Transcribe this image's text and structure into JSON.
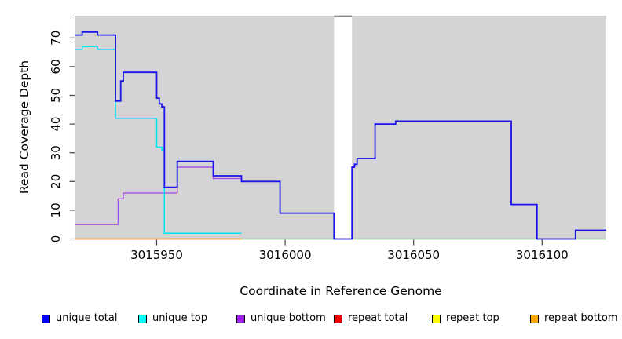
{
  "figure": {
    "background": "#ffffff",
    "plot_background": "#d4d4d4"
  },
  "axes": {
    "x_label": "Coordinate in Reference Genome",
    "y_label": "Read Coverage Depth"
  },
  "legend": {
    "items": [
      {
        "label": "unique total",
        "color": "#0000ff"
      },
      {
        "label": "unique top",
        "color": "#00ffff"
      },
      {
        "label": "unique bottom",
        "color": "#a020f0"
      },
      {
        "label": "repeat total",
        "color": "#ee0000"
      },
      {
        "label": "repeat top",
        "color": "#ffff00"
      },
      {
        "label": "repeat bottom",
        "color": "#ffa500"
      }
    ]
  },
  "chart_data": {
    "type": "line",
    "subtype": "step",
    "title": "",
    "xlabel": "Coordinate in Reference Genome",
    "ylabel": "Read Coverage Depth",
    "xlim": [
      3015918,
      3016125
    ],
    "ylim": [
      0,
      72
    ],
    "x_ticks": [
      3015950,
      3016000,
      3016050,
      3016100
    ],
    "y_ticks": [
      0,
      10,
      20,
      30,
      40,
      50,
      60,
      70
    ],
    "grid": false,
    "legend_position": "bottom",
    "plot_background": "#d4d4d4",
    "no_data_gap": {
      "x_start": 3016019,
      "x_end": 3016026
    },
    "series": [
      {
        "name": "unique total",
        "color": "#1b15ea",
        "legend_color": "#0000ff",
        "width": 1.8,
        "points": [
          [
            3015918,
            71
          ],
          [
            3015921,
            72
          ],
          [
            3015927,
            71
          ],
          [
            3015934,
            48
          ],
          [
            3015936,
            55
          ],
          [
            3015937,
            58
          ],
          [
            3015950,
            49
          ],
          [
            3015951,
            47
          ],
          [
            3015952,
            46
          ],
          [
            3015953,
            18
          ],
          [
            3015958,
            27
          ],
          [
            3015972,
            22
          ],
          [
            3015983,
            20
          ],
          [
            3015998,
            9
          ],
          [
            3016019,
            0
          ],
          [
            3016026,
            25
          ],
          [
            3016027,
            26
          ],
          [
            3016028,
            28
          ],
          [
            3016035,
            40
          ],
          [
            3016043,
            41
          ],
          [
            3016088,
            12
          ],
          [
            3016098,
            0
          ],
          [
            3016113,
            3
          ]
        ],
        "x_end": 3016125
      },
      {
        "name": "unique top",
        "color": "#00e2f2",
        "legend_color": "#00ffff",
        "width": 1.5,
        "points": [
          [
            3015918,
            66
          ],
          [
            3015921,
            67
          ],
          [
            3015927,
            66
          ],
          [
            3015934,
            42
          ],
          [
            3015950,
            32
          ],
          [
            3015952,
            31
          ],
          [
            3015953,
            2
          ]
        ],
        "x_end": 3015983
      },
      {
        "name": "unique bottom",
        "color": "#aa4fe0",
        "legend_color": "#a020f0",
        "width": 1.4,
        "points": [
          [
            3015918,
            5
          ],
          [
            3015935,
            14
          ],
          [
            3015937,
            16
          ],
          [
            3015958,
            25
          ],
          [
            3015972,
            21
          ],
          [
            3015983,
            20
          ],
          [
            3015998,
            9
          ],
          [
            3016019,
            0
          ],
          [
            3016026,
            25
          ],
          [
            3016027,
            26
          ],
          [
            3016028,
            28
          ],
          [
            3016035,
            40
          ],
          [
            3016043,
            41
          ],
          [
            3016088,
            12
          ],
          [
            3016098,
            0
          ],
          [
            3016113,
            3
          ]
        ],
        "x_end": 3016125
      },
      {
        "name": "repeat total",
        "color": "#ee0000",
        "legend_color": "#ee0000",
        "width": 1.4,
        "points": [],
        "x_end": null
      },
      {
        "name": "repeat top",
        "color": "#ffff00",
        "legend_color": "#ffff00",
        "width": 1.4,
        "points": [],
        "x_end": null
      },
      {
        "name": "repeat bottom",
        "color": "#ff9e18",
        "legend_color": "#ffa500",
        "width": 1.8,
        "points": [
          [
            3015918,
            0
          ]
        ],
        "x_end": 3015983
      }
    ],
    "baseline_segment": {
      "color": "#85ca85",
      "y": 0,
      "x_start": 3015983,
      "x_end": 3016125,
      "width": 1.4
    }
  }
}
